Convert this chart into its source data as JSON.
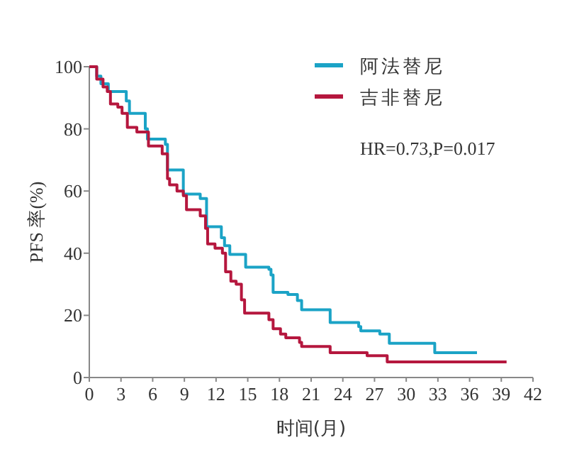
{
  "chart_data": {
    "type": "step",
    "xlabel": "时间(月)",
    "ylabel": "PFS 率(%)",
    "xlim": [
      0,
      42
    ],
    "ylim": [
      0,
      100
    ],
    "xticks": [
      0,
      3,
      6,
      9,
      12,
      15,
      18,
      21,
      24,
      27,
      30,
      33,
      36,
      39,
      42
    ],
    "yticks": [
      0,
      20,
      40,
      60,
      80,
      100
    ],
    "legend": "top right",
    "annotations": [
      "HR=0.73,P=0.017"
    ],
    "series": [
      {
        "name": "阿法替尼",
        "color": "#1ba3c6",
        "x": [
          0,
          0.7,
          1.1,
          1.8,
          3.5,
          3.8,
          5.3,
          5.5,
          7.2,
          7.4,
          8.9,
          10.5,
          11.1,
          12.5,
          12.8,
          13.3,
          14.8,
          17.0,
          17.2,
          17.4,
          18.8,
          19.7,
          20.1,
          22.8,
          25.5,
          25.7,
          27.5,
          28.4,
          32.7,
          36.7
        ],
        "values": [
          100,
          97,
          94.5,
          92,
          89,
          85,
          80,
          76.7,
          75,
          66.8,
          59,
          57.6,
          48.5,
          45,
          42.4,
          39.6,
          35.5,
          34.8,
          33,
          27.4,
          26.7,
          24.8,
          21.8,
          17.7,
          16.4,
          15,
          14,
          11,
          8,
          8
        ]
      },
      {
        "name": "吉非替尼",
        "color": "#b5173e",
        "x": [
          0,
          0.7,
          1.3,
          1.7,
          2.0,
          2.7,
          3.1,
          3.6,
          4.5,
          5.6,
          6.9,
          7.4,
          7.6,
          8.3,
          8.9,
          9.2,
          10.5,
          11.0,
          11.2,
          11.9,
          12.6,
          12.9,
          13.4,
          13.9,
          14.4,
          14.7,
          17.0,
          17.4,
          18.1,
          18.6,
          19.9,
          20.1,
          22.8,
          26.3,
          28.2,
          39.5
        ],
        "values": [
          100,
          96,
          93.5,
          92,
          88,
          87,
          85,
          80.5,
          79,
          74.5,
          72,
          64,
          62,
          60,
          58.5,
          54,
          52,
          48,
          43,
          41.6,
          40,
          34,
          31,
          30,
          25,
          20.7,
          18.6,
          15.7,
          14,
          12.8,
          11.3,
          10,
          8,
          7,
          5,
          5
        ]
      }
    ]
  }
}
